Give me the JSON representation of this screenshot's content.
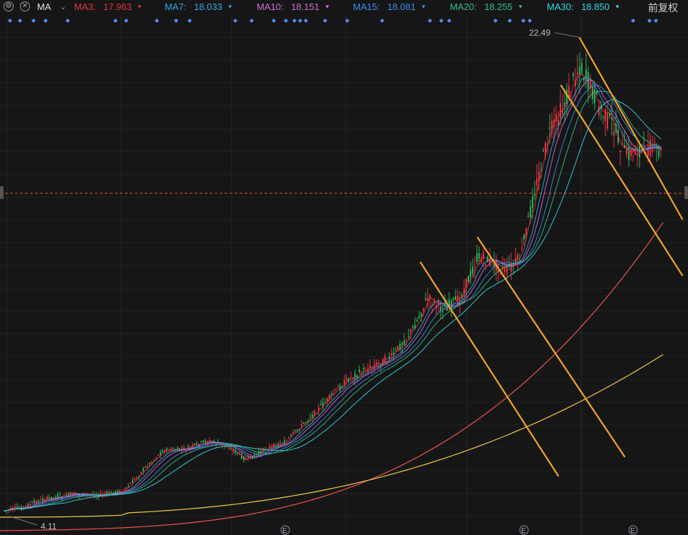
{
  "toolbar": {
    "settings_icon": "gear-icon",
    "close_icon": "close-icon",
    "indicator": "MA",
    "indicator_dropdown_icon": "chevron-down-icon",
    "adjust_label": "前复权"
  },
  "ma_indicators": [
    {
      "label": "MA3:",
      "value": "17.963",
      "color": "#e0343f"
    },
    {
      "label": "MA7:",
      "value": "18.033",
      "color": "#2fa8e8"
    },
    {
      "label": "MA10:",
      "value": "18.151",
      "color": "#d36ad8"
    },
    {
      "label": "MA15:",
      "value": "18.081",
      "color": "#3b8cf0"
    },
    {
      "label": "MA20:",
      "value": "18.255",
      "color": "#2fc08a"
    },
    {
      "label": "MA30:",
      "value": "18.850",
      "color": "#34d8e8"
    }
  ],
  "chart_data": {
    "type": "candlestick",
    "price_high_label": "22.49",
    "price_low_label": "4.11",
    "event_markers": [
      "E",
      "E",
      "E"
    ],
    "colors": {
      "up": "#e0343f",
      "down": "#27b35a",
      "trendline": "#f5a623",
      "ma_long_a": "#ef5350",
      "ma_long_b": "#f2c94c",
      "current_price_line": "#d4573a"
    }
  }
}
